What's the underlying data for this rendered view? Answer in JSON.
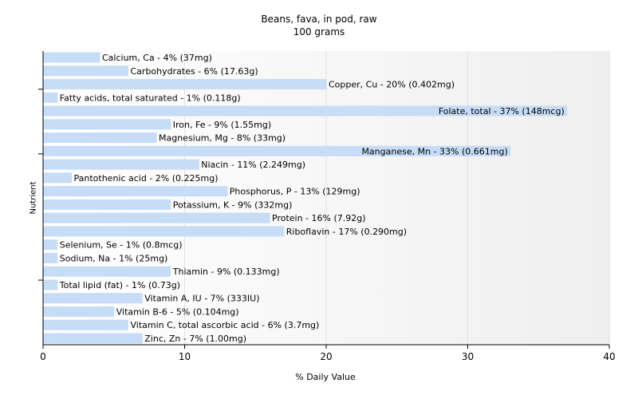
{
  "chart_data": {
    "type": "bar",
    "orientation": "horizontal",
    "title": "Beans, fava, in pod, raw",
    "subtitle": "100 grams",
    "xlabel": "% Daily Value",
    "ylabel": "Nutrient",
    "xlim": [
      0,
      40
    ],
    "xticks": [
      0,
      10,
      20,
      30,
      40
    ],
    "grid": true,
    "bar_color": "#c6dcf7",
    "categories": [
      "Calcium, Ca",
      "Carbohydrates",
      "Copper, Cu",
      "Fatty acids, total saturated",
      "Folate, total",
      "Iron, Fe",
      "Magnesium, Mg",
      "Manganese, Mn",
      "Niacin",
      "Pantothenic acid",
      "Phosphorus, P",
      "Potassium, K",
      "Protein",
      "Riboflavin",
      "Selenium, Se",
      "Sodium, Na",
      "Thiamin",
      "Total lipid (fat)",
      "Vitamin A, IU",
      "Vitamin B-6",
      "Vitamin C, total ascorbic acid",
      "Zinc, Zn"
    ],
    "values": [
      4,
      6,
      20,
      1,
      37,
      9,
      8,
      33,
      11,
      2,
      13,
      9,
      16,
      17,
      1,
      1,
      9,
      1,
      7,
      5,
      6,
      7
    ],
    "labels": [
      "Calcium, Ca - 4% (37mg)",
      "Carbohydrates - 6% (17.63g)",
      "Copper, Cu - 20% (0.402mg)",
      "Fatty acids, total saturated - 1% (0.118g)",
      "Folate, total - 37% (148mcg)",
      "Iron, Fe - 9% (1.55mg)",
      "Magnesium, Mg - 8% (33mg)",
      "Manganese, Mn - 33% (0.661mg)",
      "Niacin - 11% (2.249mg)",
      "Pantothenic acid - 2% (0.225mg)",
      "Phosphorus, P - 13% (129mg)",
      "Potassium, K - 9% (332mg)",
      "Protein - 16% (7.92g)",
      "Riboflavin - 17% (0.290mg)",
      "Selenium, Se - 1% (0.8mcg)",
      "Sodium, Na - 1% (25mg)",
      "Thiamin - 9% (0.133mg)",
      "Total lipid (fat) - 1% (0.73g)",
      "Vitamin A, IU - 7% (333IU)",
      "Vitamin B-6 - 5% (0.104mg)",
      "Vitamin C, total ascorbic acid - 6% (3.7mg)",
      "Zinc, Zn - 7% (1.00mg)"
    ]
  }
}
